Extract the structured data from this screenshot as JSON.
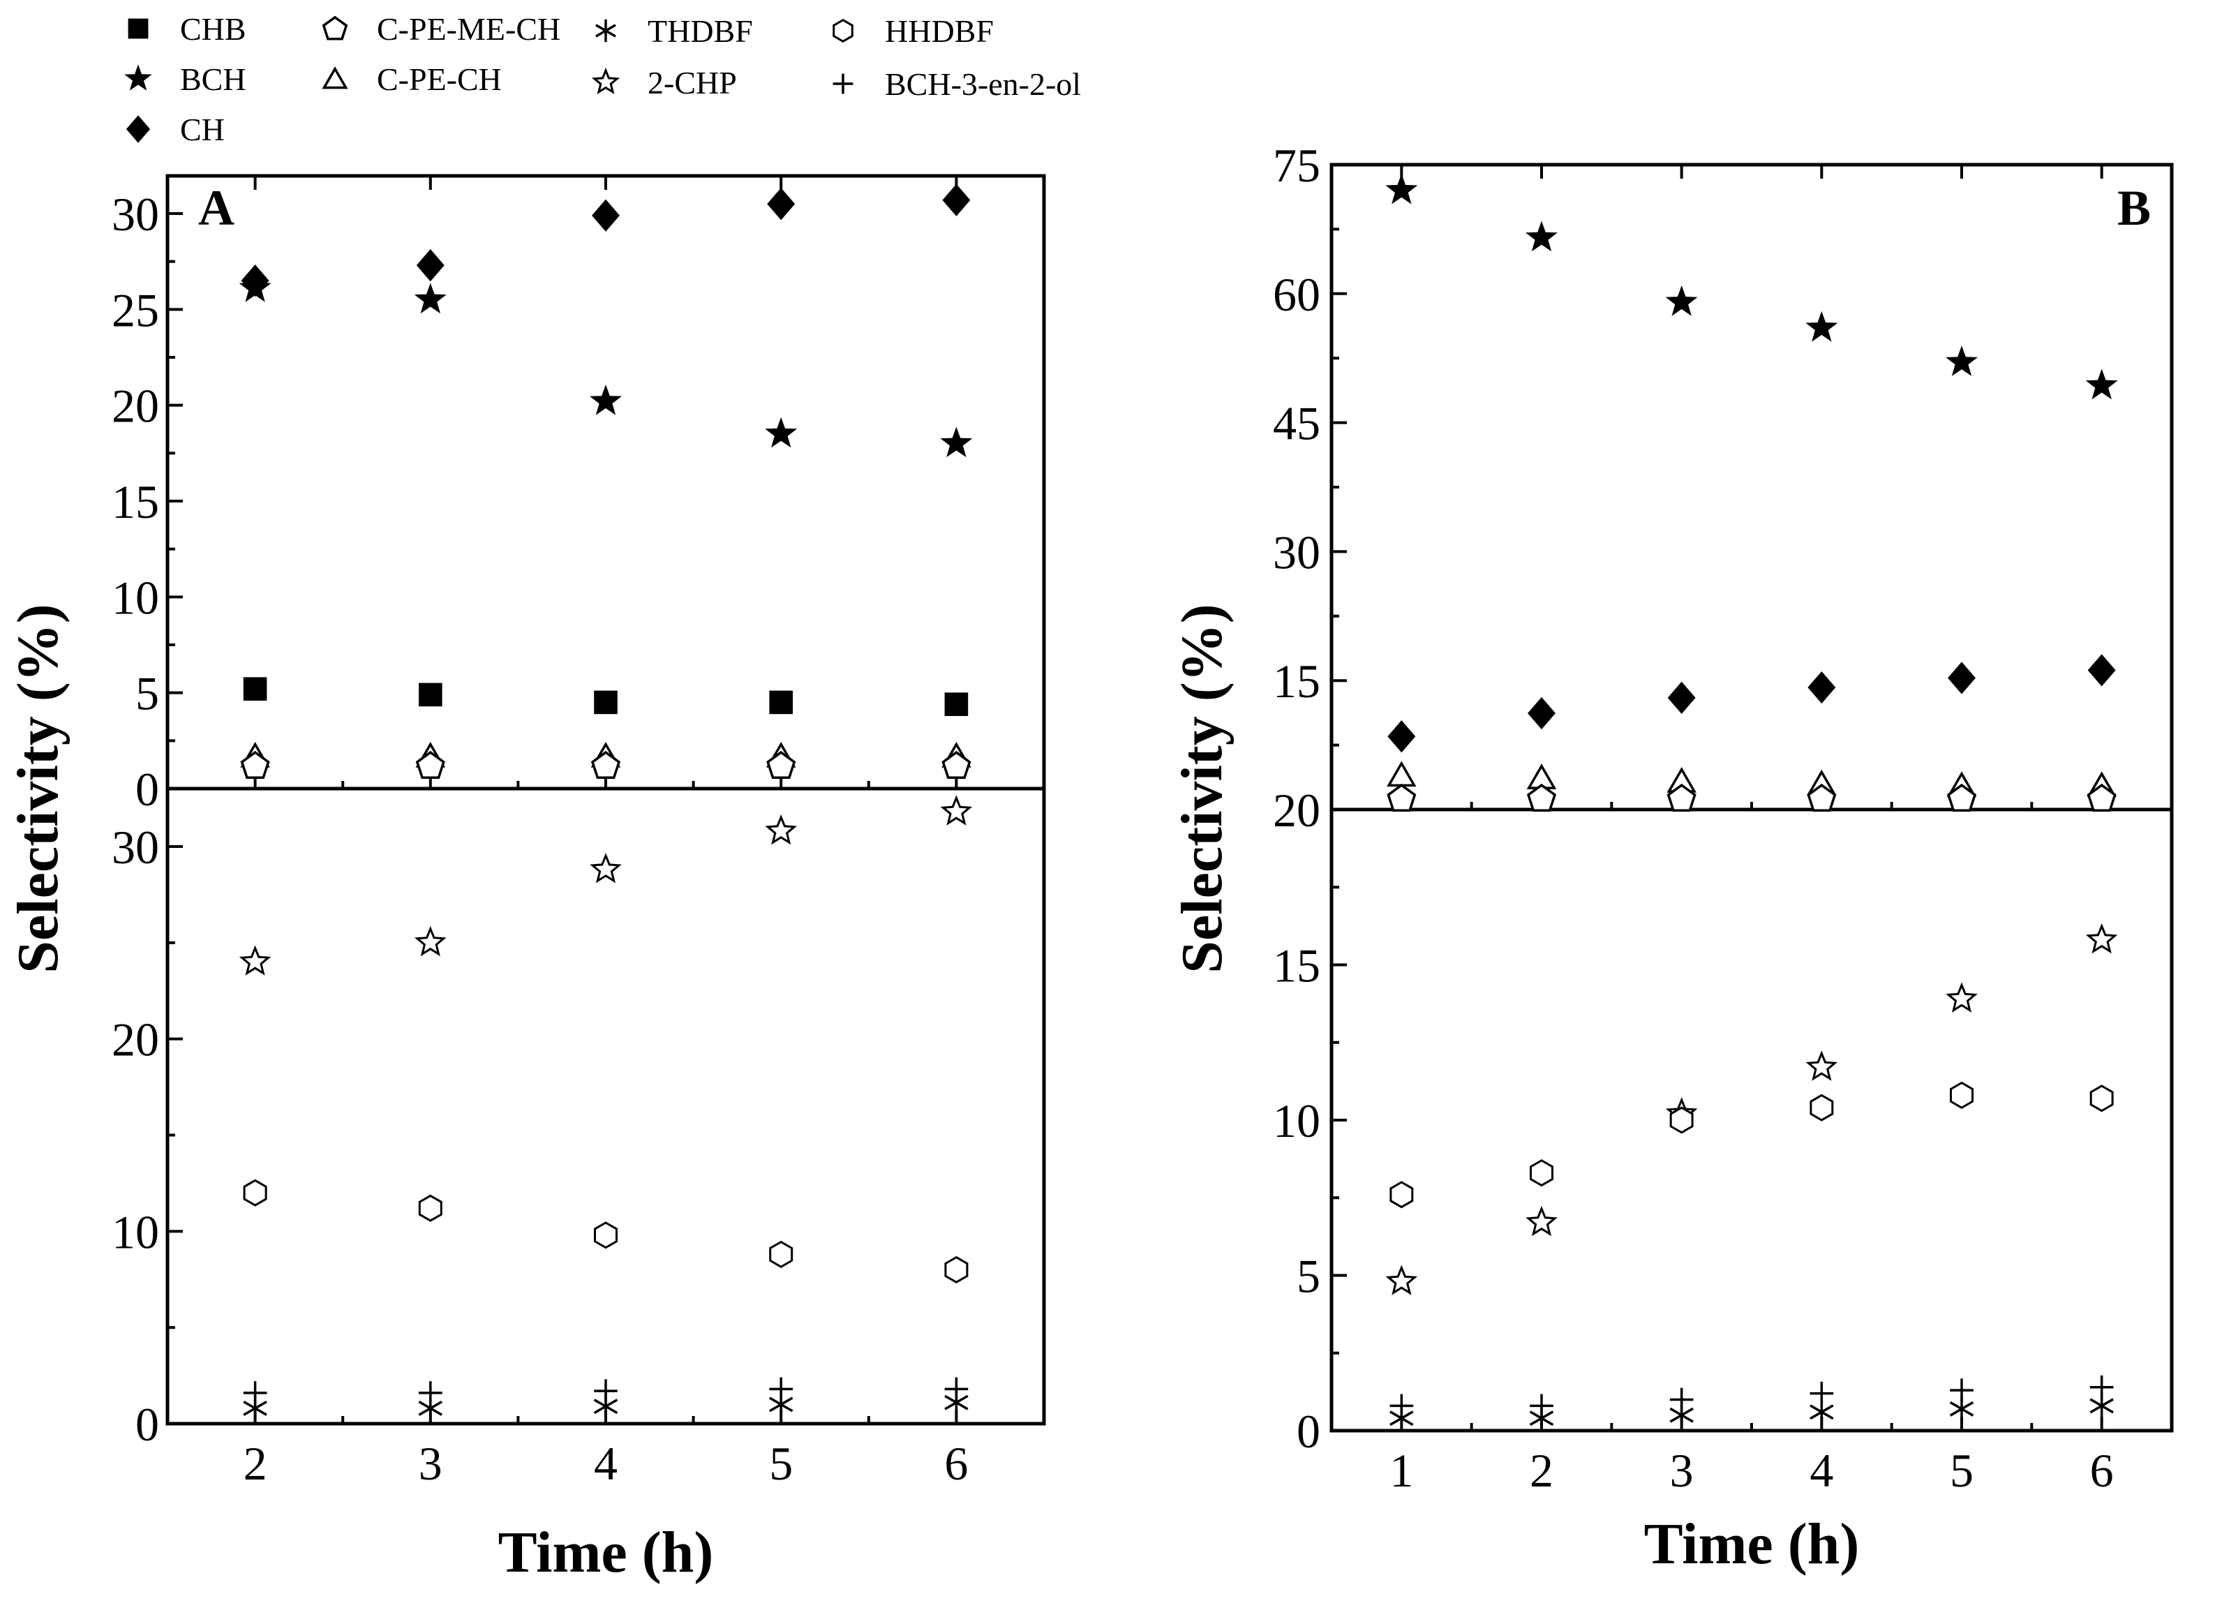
{
  "legend": [
    {
      "key": "CHB",
      "label": "CHB",
      "marker": "filled-square"
    },
    {
      "key": "BCH",
      "label": "BCH",
      "marker": "filled-star"
    },
    {
      "key": "CH",
      "label": "CH",
      "marker": "filled-diamond"
    },
    {
      "key": "CPEMECH",
      "label": "C-PE-ME-CH",
      "marker": "open-pentagon"
    },
    {
      "key": "CPECH",
      "label": "C-PE-CH",
      "marker": "open-triangle"
    },
    {
      "key": "THDBF",
      "label": "THDBF",
      "marker": "asterisk"
    },
    {
      "key": "CHP2",
      "label": "2-CHP",
      "marker": "open-star"
    },
    {
      "key": "HHDBF",
      "label": "HHDBF",
      "marker": "open-hexagon"
    },
    {
      "key": "BCHOL",
      "label": "BCH-3-en-2-ol",
      "marker": "plus"
    }
  ],
  "chart_data": [
    {
      "panel": "A",
      "type": "scatter",
      "xlabel": "Time (h)",
      "ylabel": "Selectivity (%)",
      "x": [
        2,
        3,
        4,
        5,
        6
      ],
      "xlim": [
        1.5,
        6.5
      ],
      "x_ticks": [
        "2",
        "3",
        "4",
        "5",
        "6"
      ],
      "upper": {
        "ylim": [
          0,
          32
        ],
        "y_ticks": [
          0,
          5,
          10,
          15,
          20,
          25,
          30
        ],
        "series": [
          {
            "key": "CH",
            "name": "CH",
            "values": [
              26.5,
              27.3,
              29.9,
              30.5,
              30.7
            ]
          },
          {
            "key": "BCH",
            "name": "BCH",
            "values": [
              26.1,
              25.5,
              20.2,
              18.5,
              18.0
            ]
          },
          {
            "key": "CHB",
            "name": "CHB",
            "values": [
              5.2,
              4.9,
              4.5,
              4.5,
              4.4
            ]
          },
          {
            "key": "CPECH",
            "name": "C-PE-CH",
            "values": [
              1.7,
              1.7,
              1.7,
              1.7,
              1.7
            ]
          },
          {
            "key": "CPEMECH",
            "name": "C-PE-ME-CH",
            "values": [
              1.2,
              1.2,
              1.2,
              1.2,
              1.2
            ]
          }
        ]
      },
      "lower": {
        "ylim": [
          0,
          33
        ],
        "y_ticks": [
          0,
          10,
          20,
          30
        ],
        "series": [
          {
            "key": "CHP2",
            "name": "2-CHP",
            "values": [
              24.0,
              25.0,
              28.8,
              30.8,
              31.8
            ]
          },
          {
            "key": "HHDBF",
            "name": "HHDBF",
            "values": [
              12.0,
              11.2,
              9.8,
              8.8,
              8.0
            ]
          },
          {
            "key": "BCHOL",
            "name": "BCH-3-en-2-ol",
            "values": [
              1.6,
              1.6,
              1.7,
              1.8,
              1.8
            ]
          },
          {
            "key": "THDBF",
            "name": "THDBF",
            "values": [
              0.8,
              0.8,
              0.9,
              1.0,
              1.1
            ]
          }
        ]
      }
    },
    {
      "panel": "B",
      "type": "scatter",
      "xlabel": "Time (h)",
      "ylabel": "Selectivity (%)",
      "x": [
        1,
        2,
        3,
        4,
        5,
        6
      ],
      "xlim": [
        0.5,
        6.5
      ],
      "x_ticks": [
        "1",
        "2",
        "3",
        "4",
        "5",
        "6"
      ],
      "upper": {
        "ylim": [
          0,
          75
        ],
        "y_ticks": [
          15,
          30,
          45,
          60,
          75
        ],
        "y_tick_labels": [
          "15",
          "30",
          "45",
          "60",
          "75"
        ],
        "baseline_label": "20",
        "series": [
          {
            "key": "BCH",
            "name": "BCH",
            "values": [
              72.0,
              66.5,
              59.0,
              56.0,
              52.0,
              49.3
            ]
          },
          {
            "key": "CH",
            "name": "CH",
            "values": [
              8.5,
              11.2,
              13.0,
              14.2,
              15.3,
              16.2
            ]
          },
          {
            "key": "CPECH",
            "name": "C-PE-CH",
            "values": [
              4.0,
              3.7,
              3.3,
              3.0,
              2.8,
              2.8
            ]
          },
          {
            "key": "CPEMECH",
            "name": "C-PE-ME-CH",
            "values": [
              1.3,
              1.3,
              1.3,
              1.3,
              1.3,
              1.3
            ]
          }
        ]
      },
      "lower": {
        "ylim": [
          0,
          20
        ],
        "y_ticks": [
          0,
          5,
          10,
          15
        ],
        "series": [
          {
            "key": "CHP2",
            "name": "2-CHP",
            "values": [
              4.8,
              6.7,
              10.2,
              11.7,
              13.9,
              15.8
            ]
          },
          {
            "key": "HHDBF",
            "name": "HHDBF",
            "values": [
              7.6,
              8.3,
              10.0,
              10.4,
              10.8,
              10.7
            ]
          },
          {
            "key": "BCHOL",
            "name": "BCH-3-en-2-ol",
            "values": [
              0.8,
              0.8,
              1.0,
              1.2,
              1.3,
              1.4
            ]
          },
          {
            "key": "THDBF",
            "name": "THDBF",
            "values": [
              0.4,
              0.4,
              0.5,
              0.6,
              0.7,
              0.8
            ]
          }
        ]
      }
    }
  ]
}
